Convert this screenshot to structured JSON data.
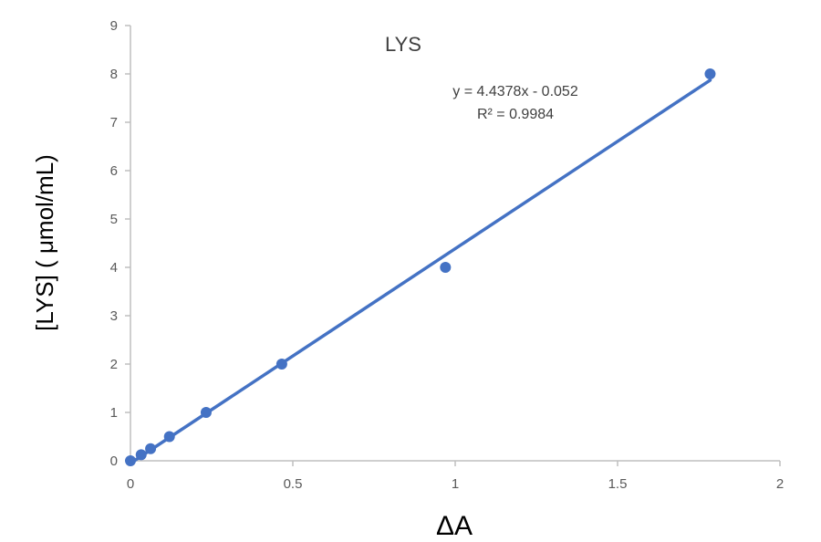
{
  "chart_data": {
    "type": "scatter",
    "title": "LYS",
    "xlabel": "ΔA",
    "ylabel": "[LYS] ( μmol/mL)",
    "xlim": [
      0,
      2
    ],
    "ylim": [
      0,
      9
    ],
    "xticks": [
      "0",
      "0.5",
      "1",
      "1.5",
      "2"
    ],
    "yticks": [
      "0",
      "1",
      "2",
      "3",
      "4",
      "5",
      "6",
      "7",
      "8",
      "9"
    ],
    "grid": false,
    "legend": "none",
    "series": [
      {
        "x": [
          0.0,
          0.033,
          0.062,
          0.12,
          0.233,
          0.466,
          0.97,
          1.785
        ],
        "y": [
          0,
          0.125,
          0.25,
          0.5,
          1,
          2,
          4,
          8
        ],
        "color": "#4472C4"
      }
    ],
    "trendline": {
      "type": "linear",
      "slope": 4.4378,
      "intercept": -0.052,
      "x_range": [
        0.0,
        1.785
      ],
      "color": "#4472C4",
      "equation": "y = 4.4378x - 0.052",
      "r2_label": "R² = 0.9984"
    }
  }
}
